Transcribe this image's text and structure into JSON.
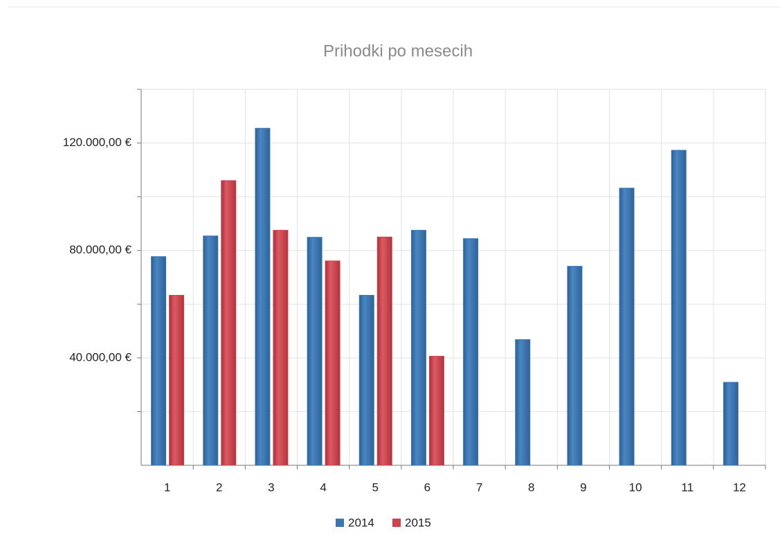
{
  "chart_data": {
    "type": "bar",
    "title": "Prihodki po mesecih",
    "categories": [
      "1",
      "2",
      "3",
      "4",
      "5",
      "6",
      "7",
      "8",
      "9",
      "10",
      "11",
      "12"
    ],
    "series": [
      {
        "name": "2014",
        "color": "#3b76b1",
        "values": [
          77700,
          85400,
          125500,
          84900,
          63300,
          87500,
          84400,
          46800,
          74100,
          103200,
          117300,
          30900
        ]
      },
      {
        "name": "2015",
        "color": "#cf414c",
        "values": [
          63300,
          106000,
          87500,
          76100,
          85000,
          40600,
          null,
          null,
          null,
          null,
          null,
          null
        ]
      }
    ],
    "ylim": [
      0,
      140000
    ],
    "yticks": [
      {
        "value": 40000,
        "label": "40.000,00 €"
      },
      {
        "value": 80000,
        "label": "80.000,00 €"
      },
      {
        "value": 120000,
        "label": "120.000,00 €"
      }
    ],
    "minor_yticks": [
      20000,
      60000,
      100000,
      140000
    ],
    "grid": true,
    "legend": "bottom"
  }
}
